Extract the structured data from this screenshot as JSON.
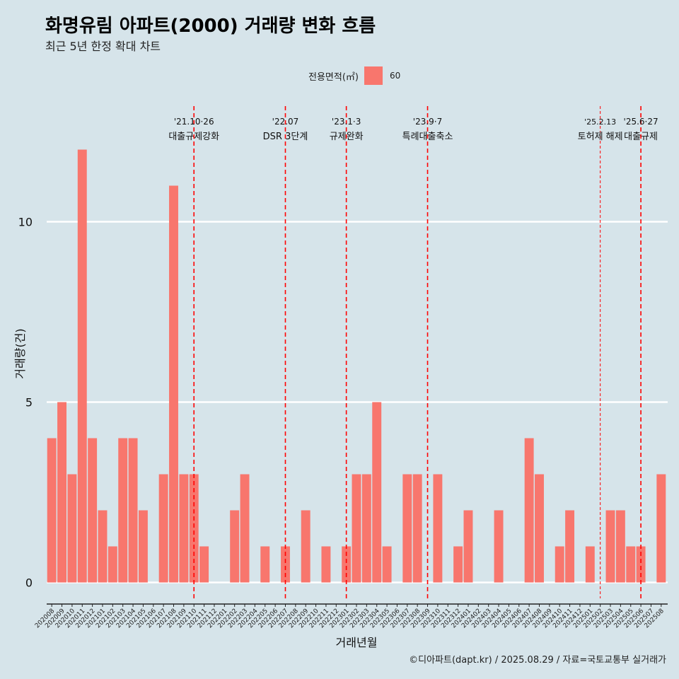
{
  "title": "화명유림 아파트(2000) 거래량 변화 흐름",
  "subtitle": "최근 5년 한정 확대 차트",
  "legend": {
    "title": "전용면적(㎡)",
    "key": "60",
    "color": "#f8766d"
  },
  "caption": "©디아파트(dapt.kr) / 2025.08.29 / 자료=국토교통부 실거래가",
  "chart_data": {
    "type": "bar",
    "xlabel": "거래년월",
    "ylabel": "거래량(건)",
    "ylim": [
      0,
      13.2
    ],
    "yticks": [
      0,
      5,
      10
    ],
    "bar_color": "#f8766d",
    "categories": [
      "202008",
      "202009",
      "202010",
      "202011",
      "202012",
      "202101",
      "202102",
      "202103",
      "202104",
      "202105",
      "202106",
      "202107",
      "202108",
      "202109",
      "202110",
      "202111",
      "202112",
      "202201",
      "202202",
      "202203",
      "202204",
      "202205",
      "202206",
      "202207",
      "202208",
      "202209",
      "202210",
      "202211",
      "202212",
      "202301",
      "202302",
      "202303",
      "202304",
      "202305",
      "202306",
      "202307",
      "202308",
      "202309",
      "202310",
      "202311",
      "202312",
      "202401",
      "202402",
      "202403",
      "202404",
      "202405",
      "202406",
      "202407",
      "202408",
      "202409",
      "202410",
      "202411",
      "202412",
      "202501",
      "202502",
      "202503",
      "202504",
      "202505",
      "202506",
      "202507",
      "202508"
    ],
    "series": [
      {
        "name": "60",
        "values": [
          4,
          5,
          3,
          12,
          4,
          2,
          1,
          4,
          4,
          2,
          0,
          3,
          11,
          3,
          3,
          1,
          0,
          0,
          2,
          3,
          0,
          1,
          0,
          1,
          0,
          2,
          0,
          1,
          0,
          1,
          3,
          3,
          5,
          1,
          0,
          3,
          3,
          0,
          3,
          0,
          1,
          2,
          0,
          0,
          2,
          0,
          0,
          4,
          3,
          0,
          1,
          2,
          0,
          1,
          0,
          2,
          2,
          1,
          1,
          0,
          3
        ]
      }
    ],
    "annotations": [
      {
        "month": "202110",
        "date": "'21.10·26",
        "label": "대출규제강화",
        "style": "dashed"
      },
      {
        "month": "202207",
        "date": "'22.07",
        "label": "DSR 3단계",
        "style": "dashed"
      },
      {
        "month": "202301",
        "date": "'23.1·3",
        "label": "규제완화",
        "style": "dashed"
      },
      {
        "month": "202309",
        "date": "'23.9·7",
        "label": "특례대출축소",
        "style": "dashed"
      },
      {
        "month": "202502",
        "date": "'25.2.13",
        "label": "토허제 해제",
        "style": "thin"
      },
      {
        "month": "202506",
        "date": "'25.6·27",
        "label": "대출규제",
        "style": "dashed"
      }
    ]
  }
}
